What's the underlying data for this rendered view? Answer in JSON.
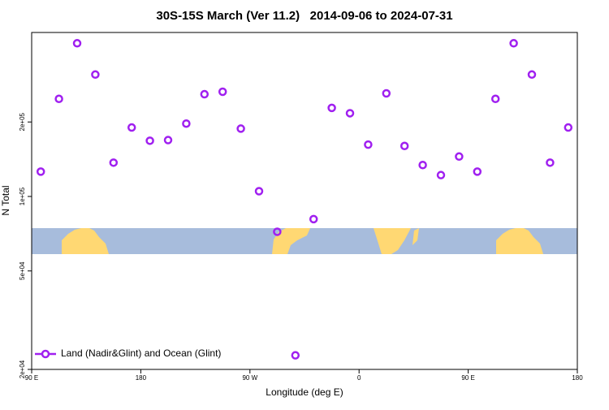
{
  "chart_data": {
    "type": "scatter",
    "title": "30S-15S March (Ver 11.2)   2014-09-06 to 2024-07-31",
    "x_label": "Longitude (deg E)",
    "y_label": "N Total",
    "log_y": true,
    "legend_position": "bottom left",
    "xlim": [
      90,
      540
    ],
    "xticks": [
      {
        "value": 90,
        "label": "90 E"
      },
      {
        "value": 180,
        "label": "180"
      },
      {
        "value": 270,
        "label": "90 W"
      },
      {
        "value": 360,
        "label": "0"
      },
      {
        "value": 450,
        "label": "90 E"
      },
      {
        "value": 540,
        "label": "180"
      }
    ],
    "ylim": [
      20000,
      460000
    ],
    "yticks": [
      {
        "value": 20000,
        "label": "2e+04"
      },
      {
        "value": 50000,
        "label": "5e+04"
      },
      {
        "value": 100000,
        "label": "1e+05"
      },
      {
        "value": 200000,
        "label": "2e+05"
      }
    ],
    "series": [
      {
        "name": "Land (Nadir&Glint) and Ocean (Glint)",
        "color": "#a020f0",
        "x": [
          97.5,
          112.5,
          127.5,
          142.5,
          157.5,
          172.5,
          187.5,
          202.5,
          217.5,
          232.5,
          247.5,
          262.5,
          277.5,
          292.5,
          307.5,
          322.5,
          337.5,
          352.5,
          367.5,
          382.5,
          397.5,
          412.5,
          427.5,
          442.5,
          457.5,
          472.5,
          487.5,
          502.5,
          517.5,
          532.5
        ],
        "values": [
          126000,
          248000,
          416000,
          311000,
          137000,
          190000,
          168000,
          169000,
          197000,
          259000,
          265000,
          188000,
          105000,
          72000,
          22800,
          81000,
          228000,
          217000,
          162000,
          261000,
          160000,
          134000,
          122000,
          145000,
          126000,
          248000,
          416000,
          311000,
          137000,
          190000
        ]
      }
    ]
  }
}
